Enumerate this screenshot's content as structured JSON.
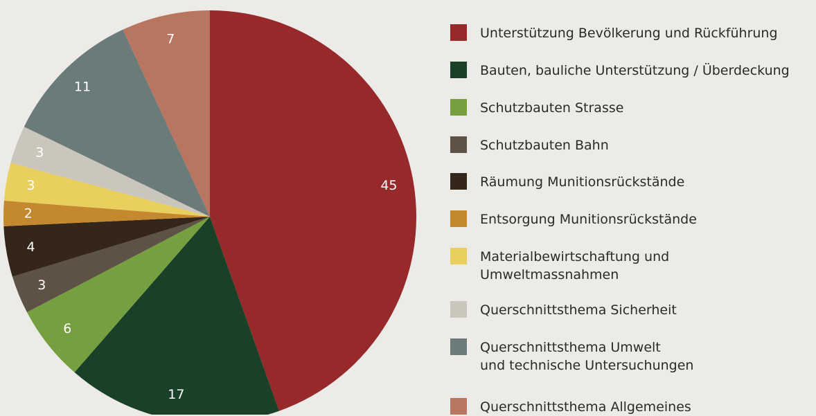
{
  "chart_data": {
    "type": "pie",
    "categories": [
      "Unterstützung Bevölkerung und Rückführung",
      "Bauten, bauliche Unterstützung / Überdeckung",
      "Schutzbauten Strasse",
      "Schutzbauten Bahn",
      "Räumung Munitionsrückstände",
      "Entsorgung Munitionsrückstände",
      "Materialbewirtschaftung und\nUmweltmassnahmen",
      "Querschnittsthema Sicherheit",
      "Querschnittsthema Umwelt\nund technische Untersuchungen",
      "Querschnittsthema Allgemeines"
    ],
    "values": [
      45,
      17,
      6,
      3,
      4,
      2,
      3,
      3,
      11,
      7
    ],
    "colors": [
      "#97292a",
      "#1b4028",
      "#76a040",
      "#5e5247",
      "#35261a",
      "#c4892e",
      "#e9cf5e",
      "#cbc6bb",
      "#6b7b7a",
      "#b87560"
    ],
    "legend": "right"
  }
}
